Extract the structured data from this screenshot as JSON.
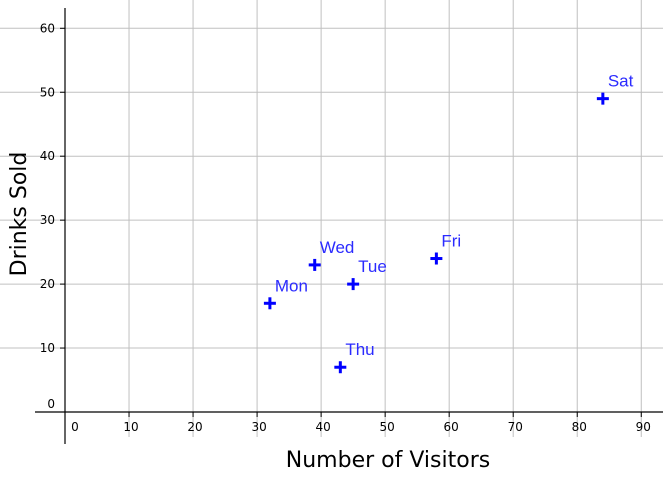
{
  "chart_data": {
    "type": "scatter",
    "title": "",
    "xlabel": "Number of Visitors",
    "ylabel": "Drinks Sold",
    "xlim": [
      -2,
      93
    ],
    "ylim": [
      -5,
      63
    ],
    "xticks": [
      0,
      10,
      20,
      30,
      40,
      50,
      60,
      70,
      80,
      90
    ],
    "yticks": [
      0,
      10,
      20,
      30,
      40,
      50,
      60
    ],
    "grid": true,
    "marker": "plus",
    "series": [
      {
        "points": [
          {
            "label": "Mon",
            "x": 32,
            "y": 17
          },
          {
            "label": "Tue",
            "x": 45,
            "y": 20
          },
          {
            "label": "Wed",
            "x": 39,
            "y": 23
          },
          {
            "label": "Thu",
            "x": 43,
            "y": 7
          },
          {
            "label": "Fri",
            "x": 58,
            "y": 24
          },
          {
            "label": "Sat",
            "x": 84,
            "y": 49
          }
        ]
      }
    ],
    "colors": {
      "points": "#0000ff",
      "labels": "#2b2bff",
      "grid": "#c0c0c0",
      "axis": "#000000"
    }
  }
}
